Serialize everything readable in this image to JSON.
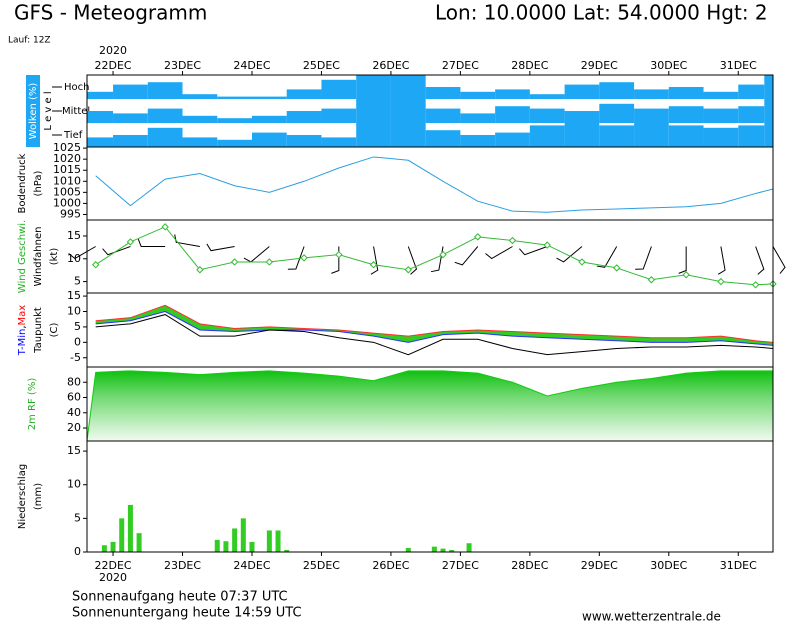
{
  "header": {
    "title": "GFS - Meteogramm",
    "location": "Lon: 10.0000 Lat: 54.0000 Hgt: 2",
    "run": "Lauf: 12Z"
  },
  "chart_data": [
    {
      "type": "cloud-levels",
      "axis_label": "Wolken (%)",
      "level_label": "L e v e l",
      "year_label": "2020",
      "xlim": [
        21.625,
        31.5
      ],
      "xticks": [
        {
          "value": 22,
          "label": "22DEC"
        },
        {
          "value": 23,
          "label": "23DEC"
        },
        {
          "value": 24,
          "label": "24DEC"
        },
        {
          "value": 25,
          "label": "25DEC"
        },
        {
          "value": 26,
          "label": "26DEC"
        },
        {
          "value": 27,
          "label": "27DEC"
        },
        {
          "value": 28,
          "label": "28DEC"
        },
        {
          "value": 29,
          "label": "29DEC"
        },
        {
          "value": 30,
          "label": "30DEC"
        },
        {
          "value": 31,
          "label": "31DEC"
        }
      ],
      "x": [
        21.75,
        22.25,
        22.75,
        23.25,
        23.75,
        24.25,
        24.75,
        25.25,
        25.75,
        26.25,
        26.75,
        27.25,
        27.75,
        28.25,
        28.75,
        29.25,
        29.75,
        30.25,
        30.75,
        31.25,
        31.5
      ],
      "ylim": [
        0,
        100
      ],
      "series": [
        {
          "name": "Hoch",
          "color": "#1ea7f5",
          "values": [
            30,
            60,
            70,
            20,
            10,
            10,
            40,
            80,
            100,
            100,
            50,
            30,
            40,
            20,
            60,
            70,
            40,
            50,
            30,
            60,
            100
          ]
        },
        {
          "name": "Mittel",
          "color": "#1ea7f5",
          "values": [
            50,
            40,
            60,
            30,
            20,
            30,
            50,
            60,
            100,
            100,
            60,
            40,
            70,
            60,
            50,
            80,
            60,
            70,
            60,
            70,
            100
          ]
        },
        {
          "name": "Tief",
          "color": "#1ea7f5",
          "values": [
            40,
            50,
            80,
            40,
            30,
            60,
            50,
            40,
            100,
            100,
            70,
            50,
            60,
            90,
            100,
            90,
            100,
            90,
            80,
            90,
            100
          ]
        }
      ]
    },
    {
      "type": "line",
      "axis_labels": [
        {
          "text": "Bodendruck",
          "color": "#000000"
        },
        {
          "text": "(hPa)",
          "color": "#000000"
        }
      ],
      "xlim": [
        21.625,
        31.5
      ],
      "x": [
        21.75,
        22.25,
        22.75,
        23.25,
        23.75,
        24.25,
        24.75,
        25.25,
        25.75,
        26.25,
        26.75,
        27.25,
        27.75,
        28.25,
        28.75,
        29.25,
        29.75,
        30.25,
        30.75,
        31.25,
        31.5
      ],
      "values": [
        1012.5,
        999,
        1011,
        1013.5,
        1008,
        1005,
        1010,
        1016,
        1021,
        1019.5,
        1010,
        1001,
        996.5,
        996,
        997,
        997.5,
        998,
        998.5,
        1000,
        1004.5,
        1006.5
      ],
      "color": "#2a9fe0",
      "ylim": [
        992.5,
        1025.5
      ],
      "yticks": [
        995,
        1000,
        1005,
        1010,
        1015,
        1020,
        1025
      ]
    },
    {
      "type": "wind",
      "axis_labels": [
        {
          "text": "Wind Geschwi.",
          "color": "#22b022"
        },
        {
          "text": "Windfahnen",
          "color": "#000000"
        },
        {
          "text": "(kt)",
          "color": "#000000"
        }
      ],
      "xlim": [
        21.625,
        31.5
      ],
      "x": [
        21.75,
        22.25,
        22.75,
        23.25,
        23.75,
        24.25,
        24.75,
        25.25,
        25.75,
        26.25,
        26.75,
        27.25,
        27.75,
        28.25,
        28.75,
        29.25,
        29.75,
        30.25,
        30.75,
        31.25,
        31.5
      ],
      "values": [
        8.7,
        13.7,
        17,
        7.6,
        9.3,
        9.3,
        10.2,
        10.9,
        8.7,
        7.6,
        10.9,
        14.8,
        14,
        13,
        9.3,
        8,
        5.4,
        6.5,
        5,
        4.3,
        4.5
      ],
      "directions": [
        240,
        250,
        270,
        280,
        260,
        230,
        200,
        180,
        170,
        160,
        190,
        220,
        240,
        250,
        230,
        210,
        200,
        180,
        170,
        160,
        150
      ],
      "color": "#33bb33",
      "barb_color": "#000000",
      "ylim": [
        2.5,
        18.5
      ],
      "yticks": [
        5,
        10,
        15
      ]
    },
    {
      "type": "temperature",
      "axis_labels": [
        [
          {
            "text": "T-Min",
            "color": "#0000ff"
          },
          {
            "text": ",",
            "color": "#000000"
          },
          {
            "text": "Max",
            "color": "#ff0000"
          }
        ],
        [
          {
            "text": "Taupunkt",
            "color": "#000000"
          }
        ],
        [
          {
            "text": "(C)",
            "color": "#000000"
          }
        ]
      ],
      "xlim": [
        21.625,
        31.5
      ],
      "x": [
        21.75,
        22.25,
        22.75,
        23.25,
        23.75,
        24.25,
        24.75,
        25.25,
        25.75,
        26.25,
        26.75,
        27.25,
        27.75,
        28.25,
        28.75,
        29.25,
        29.75,
        30.25,
        30.75,
        31.25,
        31.5
      ],
      "tmax": {
        "color": "#ff3030",
        "values": [
          7,
          8,
          12,
          6,
          4.5,
          5,
          4.5,
          4,
          3,
          2,
          3.5,
          4,
          3.5,
          3,
          2.5,
          2,
          1.5,
          1.5,
          2,
          0.5,
          0
        ]
      },
      "tmin": {
        "color": "#3030ff",
        "values": [
          6,
          7,
          10,
          4,
          3.5,
          4,
          4,
          3.5,
          2,
          0,
          2.5,
          3,
          2,
          1.5,
          1,
          0.5,
          0,
          0,
          0.5,
          -0.5,
          -1
        ]
      },
      "dewpoint": {
        "color": "#000000",
        "values": [
          5,
          6,
          9,
          2,
          2,
          4,
          3.5,
          1.5,
          0,
          -4,
          1,
          1,
          -2,
          -4,
          -3,
          -2,
          -1.5,
          -1.5,
          -1,
          -1.5,
          -2
        ]
      },
      "fill": "#33cc22",
      "ylim": [
        -8,
        16
      ],
      "yticks": [
        -5,
        0,
        5,
        10,
        15
      ]
    },
    {
      "type": "area",
      "axis_labels": [
        {
          "text": "2m RF (%)",
          "color": "#22b022"
        }
      ],
      "xlim": [
        21.625,
        31.5
      ],
      "x": [
        21.75,
        22.25,
        22.75,
        23.25,
        23.75,
        24.25,
        24.75,
        25.25,
        25.75,
        26.25,
        26.75,
        27.25,
        27.75,
        28.25,
        28.75,
        29.25,
        29.75,
        30.25,
        30.75,
        31.25,
        31.5
      ],
      "values": [
        93,
        95,
        93,
        90,
        93,
        95,
        92,
        88,
        82,
        95,
        95,
        92,
        80,
        62,
        72,
        80,
        85,
        92,
        95,
        95,
        95
      ],
      "color": "#11cc11",
      "ylim": [
        3,
        100
      ],
      "yticks": [
        20,
        40,
        60,
        80
      ]
    },
    {
      "type": "bar",
      "axis_labels": [
        {
          "text": "Niederschlag",
          "color": "#000000"
        },
        {
          "text": "(mm)",
          "color": "#000000"
        }
      ],
      "year_label": "2020",
      "xlim": [
        21.625,
        31.5
      ],
      "xticks": [
        {
          "value": 22,
          "label": "22DEC"
        },
        {
          "value": 23,
          "label": "23DEC"
        },
        {
          "value": 24,
          "label": "24DEC"
        },
        {
          "value": 25,
          "label": "25DEC"
        },
        {
          "value": 26,
          "label": "26DEC"
        },
        {
          "value": 27,
          "label": "27DEC"
        },
        {
          "value": 28,
          "label": "28DEC"
        },
        {
          "value": 29,
          "label": "29DEC"
        },
        {
          "value": 30,
          "label": "30DEC"
        },
        {
          "value": 31,
          "label": "31DEC"
        }
      ],
      "x": [
        21.875,
        22.0,
        22.125,
        22.25,
        22.375,
        23.5,
        23.625,
        23.75,
        23.875,
        24.0,
        24.25,
        24.375,
        24.5,
        26.25,
        26.625,
        26.75,
        26.875,
        27.125
      ],
      "values": [
        1,
        1.5,
        5,
        7,
        2.8,
        1.8,
        1.6,
        3.5,
        5,
        1.5,
        3.2,
        3.2,
        0.3,
        0.6,
        0.8,
        0.5,
        0.3,
        1.3
      ],
      "color": "#33cc22",
      "ylim": [
        0,
        16.5
      ],
      "yticks": [
        0,
        5,
        10,
        15
      ]
    }
  ],
  "footer": {
    "sunrise": "Sonnenaufgang heute 07:37 UTC",
    "sunset": "Sonnenuntergang heute 14:59 UTC",
    "source": "www.wetterzentrale.de"
  }
}
